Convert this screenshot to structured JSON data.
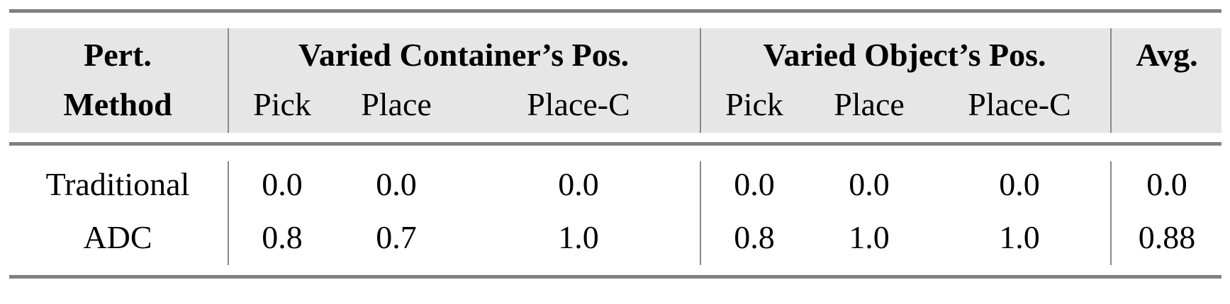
{
  "table": {
    "header": {
      "row1": {
        "method": "Pert.",
        "group1": "Varied Container’s Pos.",
        "group2": "Varied Object’s Pos.",
        "avg": "Avg."
      },
      "row2": {
        "method": "Method",
        "group1_cols": [
          "Pick",
          "Place",
          "Place-C"
        ],
        "group2_cols": [
          "Pick",
          "Place",
          "Place-C"
        ]
      }
    },
    "rows": [
      {
        "method": "Traditional",
        "values": [
          "0.0",
          "0.0",
          "0.0",
          "0.0",
          "0.0",
          "0.0",
          "0.0"
        ]
      },
      {
        "method": "ADC",
        "values": [
          "0.8",
          "0.7",
          "1.0",
          "0.8",
          "1.0",
          "1.0",
          "0.88"
        ]
      }
    ],
    "colors": {
      "header_bg": "#e6e6e6",
      "rule": "#808080"
    }
  }
}
